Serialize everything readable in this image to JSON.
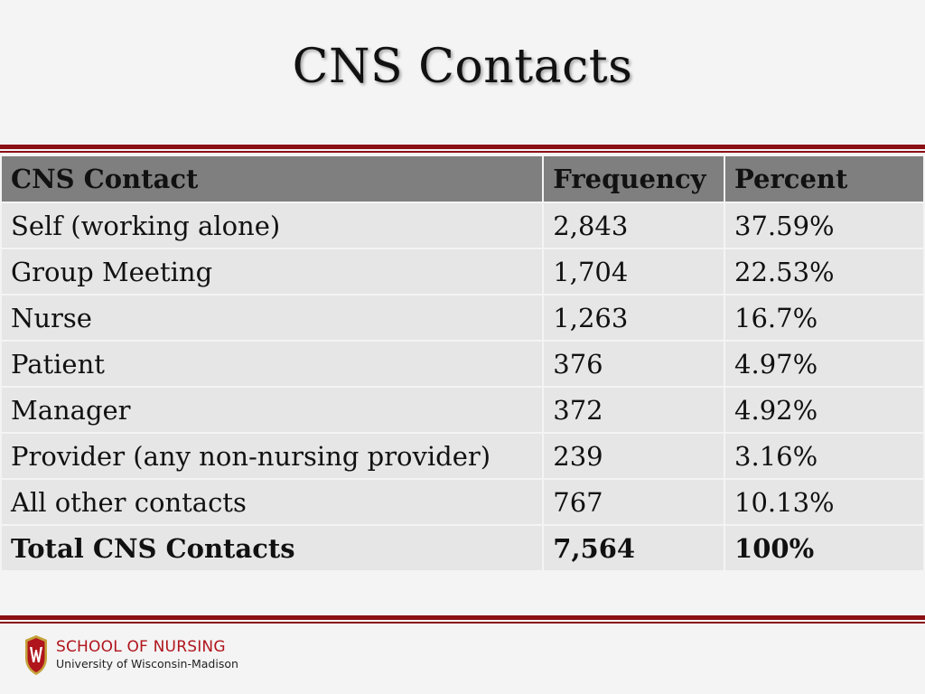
{
  "slide": {
    "title": "CNS Contacts"
  },
  "table": {
    "headers": [
      "CNS Contact",
      "Frequency",
      "Percent"
    ],
    "rows": [
      [
        "Self (working alone)",
        "2,843",
        "37.59%"
      ],
      [
        "Group Meeting",
        "1,704",
        "22.53%"
      ],
      [
        "Nurse",
        "1,263",
        "16.7%"
      ],
      [
        "Patient",
        "376",
        "4.97%"
      ],
      [
        "Manager",
        "372",
        "4.92%"
      ],
      [
        "Provider (any non-nursing provider)",
        "239",
        "3.16%"
      ],
      [
        "All other contacts",
        "767",
        "10.13%"
      ]
    ],
    "total": [
      "Total CNS Contacts",
      "7,564",
      "100%"
    ]
  },
  "footer": {
    "logo_line1": "SCHOOL OF NURSING",
    "logo_line2": "University of Wisconsin-Madison",
    "logo_icon": "uw-crest-icon",
    "brand_color": "#b0151c"
  }
}
